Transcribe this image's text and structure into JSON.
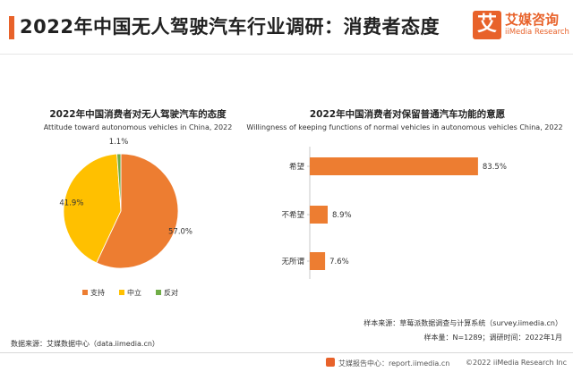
{
  "header": {
    "title": "2022年中国无人驾驶汽车行业调研：消费者态度",
    "logo_char": "艾",
    "logo_cn": "艾媒咨询",
    "logo_en": "iiMedia Research"
  },
  "colors": {
    "accent": "#e8622a",
    "support": "#ed7d31",
    "neutral": "#ffc000",
    "oppose": "#70ad47",
    "bar": "#ed7d31"
  },
  "chart_data": [
    {
      "type": "pie",
      "title": "2022年中国消费者对无人驾驶汽车的态度",
      "subtitle": "Attitude toward autonomous vehicles in China, 2022",
      "categories": [
        "支持",
        "中立",
        "反对"
      ],
      "values": [
        57.0,
        41.9,
        1.1
      ],
      "labels": [
        "57.0%",
        "41.9%",
        "1.1%"
      ],
      "colors": [
        "#ed7d31",
        "#ffc000",
        "#70ad47"
      ],
      "legend": "bottom"
    },
    {
      "type": "bar",
      "orientation": "horizontal",
      "title": "2022年中国消费者对保留普通汽车功能的意愿",
      "subtitle": "Willingness of keeping functions of normal vehicles in autonomous vehicles China, 2022",
      "categories": [
        "希望",
        "不希望",
        "无所谓"
      ],
      "values": [
        83.5,
        8.9,
        7.6
      ],
      "labels": [
        "83.5%",
        "8.9%",
        "7.6%"
      ],
      "xlim": [
        0,
        100
      ],
      "color": "#ed7d31"
    }
  ],
  "notes": {
    "sample_source": "样本来源：草莓派数据调查与计算系统（survey.iimedia.cn）",
    "sample_info": "样本量：N=1289；调研时间：2022年1月",
    "data_source": "数据来源：艾媒数据中心（data.iimedia.cn）"
  },
  "footer": {
    "report_center": "艾媒报告中心：report.iimedia.cn",
    "copyright": "©2022  iiMedia Research  Inc"
  }
}
